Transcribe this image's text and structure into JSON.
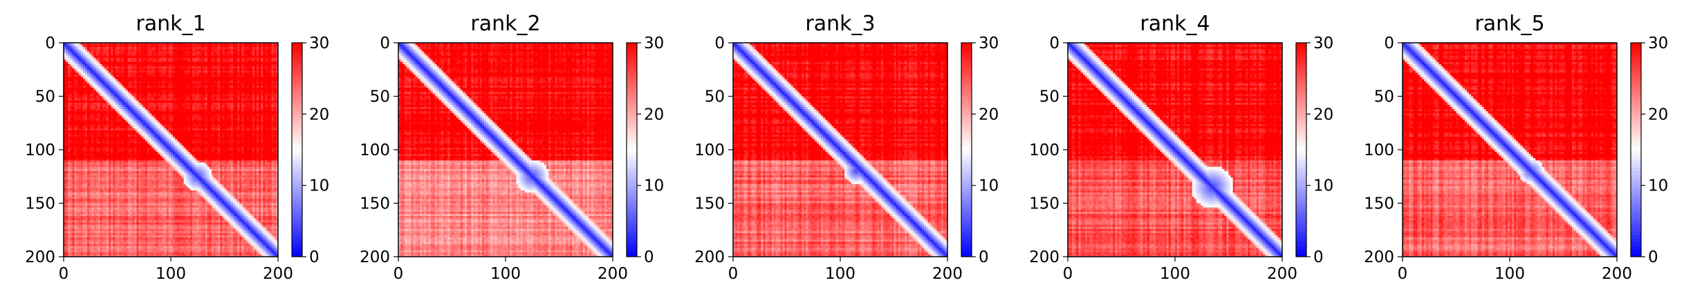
{
  "chart_data": [
    {
      "type": "heatmap",
      "title": "rank_1",
      "x": {
        "lim": [
          0,
          200
        ],
        "ticks": [
          0,
          100,
          200
        ]
      },
      "y": {
        "lim": [
          0,
          200
        ],
        "ticks": [
          0,
          50,
          100,
          150,
          200
        ],
        "inverted": true
      },
      "colorbar": {
        "lim": [
          0,
          30
        ],
        "ticks": [
          0,
          10,
          20,
          30
        ],
        "colormap": "bwr",
        "colors": [
          "#0000ff",
          "#ffffff",
          "#ff0000"
        ]
      },
      "features": {
        "diag_width": 5,
        "domain_split": 110,
        "lower_domain_level": 24,
        "blob": {
          "x": 125,
          "y": 125,
          "r": 14
        }
      }
    },
    {
      "type": "heatmap",
      "title": "rank_2",
      "x": {
        "lim": [
          0,
          200
        ],
        "ticks": [
          0,
          100,
          200
        ]
      },
      "y": {
        "lim": [
          0,
          200
        ],
        "ticks": [
          0,
          50,
          100,
          150,
          200
        ],
        "inverted": true
      },
      "colorbar": {
        "lim": [
          0,
          30
        ],
        "ticks": [
          0,
          10,
          20,
          30
        ],
        "colormap": "bwr",
        "colors": [
          "#0000ff",
          "#ffffff",
          "#ff0000"
        ]
      },
      "features": {
        "diag_width": 5,
        "domain_split": 110,
        "lower_domain_level": 22,
        "blob": {
          "x": 125,
          "y": 125,
          "r": 16
        }
      }
    },
    {
      "type": "heatmap",
      "title": "rank_3",
      "x": {
        "lim": [
          0,
          200
        ],
        "ticks": [
          0,
          100,
          200
        ]
      },
      "y": {
        "lim": [
          0,
          200
        ],
        "ticks": [
          0,
          50,
          100,
          150,
          200
        ],
        "inverted": true
      },
      "colorbar": {
        "lim": [
          0,
          30
        ],
        "ticks": [
          0,
          10,
          20,
          30
        ],
        "colormap": "bwr",
        "colors": [
          "#0000ff",
          "#ffffff",
          "#ff0000"
        ]
      },
      "features": {
        "diag_width": 5,
        "domain_split": 110,
        "lower_domain_level": 24,
        "blob": {
          "x": 115,
          "y": 120,
          "r": 12
        }
      }
    },
    {
      "type": "heatmap",
      "title": "rank_4",
      "x": {
        "lim": [
          0,
          200
        ],
        "ticks": [
          0,
          100,
          200
        ]
      },
      "y": {
        "lim": [
          0,
          200
        ],
        "ticks": [
          0,
          50,
          100,
          150,
          200
        ],
        "inverted": true
      },
      "colorbar": {
        "lim": [
          0,
          30
        ],
        "ticks": [
          0,
          10,
          20,
          30
        ],
        "colormap": "bwr",
        "colors": [
          "#0000ff",
          "#ffffff",
          "#ff0000"
        ]
      },
      "features": {
        "diag_width": 5,
        "domain_split": 110,
        "lower_domain_level": 25,
        "blob": {
          "x": 135,
          "y": 135,
          "r": 20
        }
      }
    },
    {
      "type": "heatmap",
      "title": "rank_5",
      "x": {
        "lim": [
          0,
          200
        ],
        "ticks": [
          0,
          100,
          200
        ]
      },
      "y": {
        "lim": [
          0,
          200
        ],
        "ticks": [
          0,
          50,
          100,
          150,
          200
        ],
        "inverted": true
      },
      "colorbar": {
        "lim": [
          0,
          30
        ],
        "ticks": [
          0,
          10,
          20,
          30
        ],
        "colormap": "bwr",
        "colors": [
          "#0000ff",
          "#ffffff",
          "#ff0000"
        ]
      },
      "features": {
        "diag_width": 5,
        "domain_split": 110,
        "lower_domain_level": 24,
        "blob": {
          "x": 120,
          "y": 120,
          "r": 12
        }
      }
    }
  ]
}
